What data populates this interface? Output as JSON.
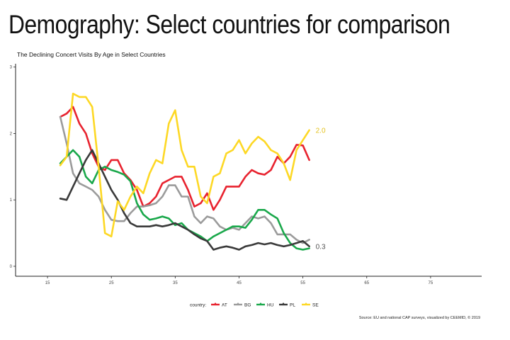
{
  "slide": {
    "title": "Demography: Select countries for comparison"
  },
  "chart_data": {
    "type": "line",
    "title": "The Declining Concert Visits By Age in Select Countries",
    "caption": "Source: EU and national CAP surveys, visualized by CEEMID, © 2019",
    "xlabel": "",
    "ylabel": "",
    "xlim": [
      10,
      83
    ],
    "ylim": [
      -0.15,
      3.05
    ],
    "x_ticks": [
      15,
      25,
      35,
      45,
      55,
      65,
      75
    ],
    "y_ticks": [
      0,
      1,
      2,
      3
    ],
    "grid": false,
    "legend": {
      "title": "country:",
      "position": "bottom"
    },
    "series": [
      {
        "name": "AT",
        "color": "#e8232f",
        "x": [
          17,
          18,
          19,
          20,
          21,
          22,
          23,
          24,
          25,
          26,
          27,
          28,
          29,
          30,
          31,
          32,
          33,
          34,
          35,
          36,
          37,
          38,
          39,
          40,
          41,
          42,
          43,
          44,
          45,
          46,
          47,
          48,
          49,
          50,
          51,
          52,
          53,
          54,
          55,
          56
        ],
        "y": [
          2.25,
          2.3,
          2.4,
          2.15,
          2.0,
          1.7,
          1.5,
          1.45,
          1.6,
          1.6,
          1.4,
          1.3,
          1.15,
          0.9,
          0.95,
          1.05,
          1.25,
          1.3,
          1.35,
          1.35,
          1.15,
          0.9,
          0.95,
          1.1,
          0.85,
          1.0,
          1.2,
          1.2,
          1.2,
          1.35,
          1.45,
          1.4,
          1.38,
          1.45,
          1.65,
          1.55,
          1.65,
          1.83,
          1.82,
          1.6
        ]
      },
      {
        "name": "BG",
        "color": "#9b9b9b",
        "x": [
          17,
          18,
          19,
          20,
          21,
          22,
          23,
          24,
          25,
          26,
          27,
          28,
          29,
          30,
          31,
          32,
          33,
          34,
          35,
          36,
          37,
          38,
          39,
          40,
          41,
          42,
          43,
          44,
          45,
          46,
          47,
          48,
          49,
          50,
          51,
          52,
          53,
          54,
          55,
          56
        ],
        "y": [
          2.25,
          1.85,
          1.4,
          1.25,
          1.2,
          1.15,
          1.05,
          0.85,
          0.7,
          0.68,
          0.68,
          0.8,
          0.9,
          0.9,
          0.92,
          0.95,
          1.05,
          1.22,
          1.22,
          1.05,
          1.05,
          0.75,
          0.65,
          0.75,
          0.72,
          0.6,
          0.55,
          0.58,
          0.55,
          0.65,
          0.75,
          0.72,
          0.75,
          0.65,
          0.48,
          0.48,
          0.48,
          0.4,
          0.35,
          0.4
        ]
      },
      {
        "name": "HU",
        "color": "#1aa84b",
        "x": [
          17,
          18,
          19,
          20,
          21,
          22,
          23,
          24,
          25,
          26,
          27,
          28,
          29,
          30,
          31,
          32,
          33,
          34,
          35,
          36,
          37,
          38,
          39,
          40,
          41,
          42,
          43,
          44,
          45,
          46,
          47,
          48,
          49,
          50,
          51,
          52,
          53,
          54,
          55,
          56
        ],
        "y": [
          1.55,
          1.65,
          1.75,
          1.65,
          1.35,
          1.25,
          1.45,
          1.5,
          1.45,
          1.42,
          1.38,
          1.28,
          0.95,
          0.78,
          0.7,
          0.72,
          0.75,
          0.72,
          0.62,
          0.65,
          0.55,
          0.5,
          0.45,
          0.38,
          0.45,
          0.5,
          0.55,
          0.6,
          0.6,
          0.58,
          0.7,
          0.85,
          0.85,
          0.78,
          0.72,
          0.5,
          0.35,
          0.27,
          0.25,
          0.27
        ]
      },
      {
        "name": "PL",
        "color": "#3a3a3a",
        "x": [
          17,
          18,
          19,
          20,
          21,
          22,
          23,
          24,
          25,
          26,
          27,
          28,
          29,
          30,
          31,
          32,
          33,
          34,
          35,
          36,
          37,
          38,
          39,
          40,
          41,
          42,
          43,
          44,
          45,
          46,
          47,
          48,
          49,
          50,
          51,
          52,
          53,
          54,
          55,
          56
        ],
        "y": [
          1.02,
          1.0,
          1.2,
          1.4,
          1.6,
          1.75,
          1.55,
          1.35,
          1.15,
          1.0,
          0.8,
          0.65,
          0.6,
          0.6,
          0.6,
          0.62,
          0.6,
          0.62,
          0.65,
          0.6,
          0.55,
          0.48,
          0.42,
          0.38,
          0.25,
          0.28,
          0.3,
          0.28,
          0.25,
          0.3,
          0.32,
          0.35,
          0.33,
          0.35,
          0.32,
          0.3,
          0.32,
          0.35,
          0.38,
          0.3
        ]
      },
      {
        "name": "SE",
        "color": "#fdd825",
        "x": [
          17,
          18,
          19,
          20,
          21,
          22,
          23,
          24,
          25,
          26,
          27,
          28,
          29,
          30,
          31,
          32,
          33,
          34,
          35,
          36,
          37,
          38,
          39,
          40,
          41,
          42,
          43,
          44,
          45,
          46,
          47,
          48,
          49,
          50,
          51,
          52,
          53,
          54,
          55,
          56
        ],
        "y": [
          1.52,
          1.65,
          2.6,
          2.55,
          2.55,
          2.4,
          1.5,
          0.5,
          0.45,
          0.98,
          0.85,
          1.05,
          1.2,
          1.1,
          1.4,
          1.6,
          1.55,
          2.15,
          2.35,
          1.75,
          1.5,
          1.5,
          1.05,
          0.95,
          1.35,
          1.4,
          1.7,
          1.75,
          1.9,
          1.7,
          1.85,
          1.95,
          1.88,
          1.75,
          1.7,
          1.55,
          1.3,
          1.75,
          1.9,
          2.05
        ]
      }
    ],
    "end_labels": [
      {
        "text": "2.0",
        "series": "SE",
        "x": 56,
        "y": 2.05
      },
      {
        "text": "0.3",
        "series": "PL",
        "x": 56,
        "y": 0.3
      }
    ]
  }
}
